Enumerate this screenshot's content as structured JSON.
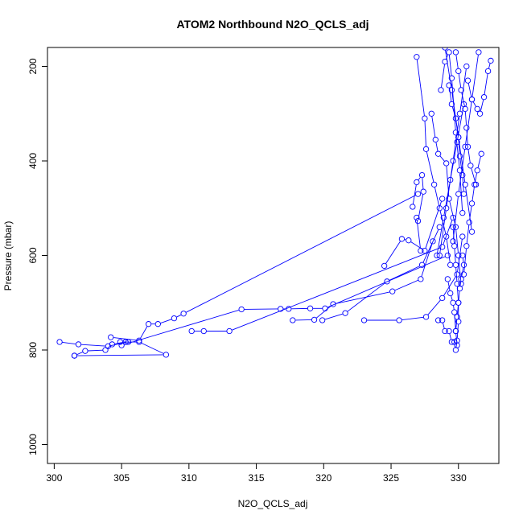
{
  "chart_data": {
    "type": "scatter",
    "title": "ATOM2 Northbound N2O_QCLS_adj",
    "xlabel": "N2O_QCLS_adj",
    "ylabel": "Pressure (mbar)",
    "xlim": [
      299.5,
      333.0
    ],
    "ylim": [
      1040,
      160
    ],
    "y_reversed": true,
    "x_ticks": [
      "300",
      "305",
      "310",
      "315",
      "320",
      "325",
      "330"
    ],
    "y_ticks": [
      "200",
      "400",
      "600",
      "800",
      "1000"
    ],
    "grid": false,
    "legend": "none",
    "marker": "open-circle",
    "connected": true,
    "color": "#0000ff",
    "series": [
      {
        "x": [
          300.4,
          301.8,
          304.0,
          305.5,
          304.9,
          306.3,
          308.3,
          301.5
        ],
        "y": [
          783,
          788,
          792,
          783,
          783,
          783,
          810,
          812
        ]
      },
      {
        "x": [
          301.5,
          302.3,
          303.8,
          304.3,
          305.3
        ],
        "y": [
          812,
          802,
          800,
          788,
          783
        ]
      },
      {
        "x": [
          304.2,
          306.3,
          307.0,
          307.7,
          308.9,
          309.6,
          327.0
        ],
        "y": [
          773,
          780,
          745,
          745,
          733,
          723,
          470
        ]
      },
      {
        "x": [
          305.0,
          313.9,
          316.8,
          317.4,
          319.0,
          320.1,
          329.2
        ],
        "y": [
          790,
          714,
          713,
          713,
          712,
          712,
          600
        ]
      },
      {
        "x": [
          310.2,
          311.1,
          313.0,
          328.8,
          329.6
        ],
        "y": [
          760,
          760,
          760,
          582,
          520
        ]
      },
      {
        "x": [
          317.7,
          319.3,
          320.7,
          325.1,
          327.2,
          328.1
        ],
        "y": [
          737,
          736,
          703,
          676,
          650,
          570
        ]
      },
      {
        "x": [
          319.9,
          321.6,
          324.7,
          327.3,
          328.6
        ],
        "y": [
          737,
          722,
          655,
          620,
          540
        ]
      },
      {
        "x": [
          323.0,
          325.6,
          327.6,
          328.8,
          329.9,
          330.3
        ],
        "y": [
          737,
          737,
          730,
          690,
          640,
          560
        ]
      },
      {
        "x": [
          324.5,
          325.8,
          326.3,
          327.5,
          328.8
        ],
        "y": [
          622,
          565,
          568,
          590,
          480
        ]
      },
      {
        "x": [
          326.6,
          326.9,
          327.3,
          327.4,
          327.0,
          326.9,
          327.2
        ],
        "y": [
          497,
          445,
          430,
          465,
          527,
          520,
          590
        ]
      },
      {
        "x": [
          326.9,
          327.5,
          327.6,
          328.2,
          328.6,
          329.1,
          329.4
        ],
        "y": [
          180,
          310,
          375,
          450,
          500,
          560,
          620
        ]
      },
      {
        "x": [
          328.0,
          328.3,
          328.5,
          329.1,
          329.3,
          329.8,
          330.0,
          330.2
        ],
        "y": [
          300,
          355,
          385,
          405,
          480,
          540,
          600,
          660
        ]
      },
      {
        "x": [
          328.7,
          329.0,
          329.3,
          329.5,
          329.8,
          330.1,
          330.3
        ],
        "y": [
          250,
          190,
          170,
          225,
          340,
          420,
          510
        ]
      },
      {
        "x": [
          329.3,
          329.5,
          329.8,
          330.0,
          330.1,
          330.3,
          330.4
        ],
        "y": [
          240,
          280,
          310,
          350,
          390,
          430,
          470
        ]
      },
      {
        "x": [
          329.8,
          330.0,
          330.2,
          330.5,
          330.6,
          330.7,
          330.9,
          331.3
        ],
        "y": [
          170,
          210,
          250,
          290,
          330,
          370,
          410,
          450
        ]
      },
      {
        "x": [
          330.7,
          331.0,
          331.4,
          331.6,
          331.9,
          332.2,
          332.4
        ],
        "y": [
          230,
          270,
          290,
          300,
          265,
          210,
          188
        ]
      },
      {
        "x": [
          331.7,
          331.4,
          331.2,
          331.0,
          330.8,
          330.6,
          330.4
        ],
        "y": [
          385,
          420,
          450,
          490,
          530,
          580,
          640
        ]
      },
      {
        "x": [
          329.6,
          329.7,
          329.8,
          329.9,
          330.0,
          330.0,
          329.9,
          329.8
        ],
        "y": [
          540,
          580,
          620,
          660,
          700,
          740,
          780,
          800
        ]
      },
      {
        "x": [
          329.2,
          329.4,
          329.6,
          329.7,
          329.8,
          329.9
        ],
        "y": [
          650,
          680,
          700,
          720,
          760,
          790
        ]
      },
      {
        "x": [
          328.5,
          328.8,
          329.0,
          329.3,
          329.5,
          329.7
        ],
        "y": [
          737,
          737,
          760,
          760,
          783,
          783
        ]
      },
      {
        "x": [
          330.3,
          330.4,
          330.2,
          330.1,
          330.0,
          329.9,
          329.8
        ],
        "y": [
          600,
          620,
          650,
          670,
          700,
          730,
          760
        ]
      },
      {
        "x": [
          329.0,
          329.5,
          330.0,
          330.5,
          331.0
        ],
        "y": [
          160,
          250,
          350,
          450,
          550
        ]
      },
      {
        "x": [
          331.5,
          331.0,
          330.5,
          330.0,
          329.6
        ],
        "y": [
          170,
          270,
          370,
          470,
          570
        ]
      },
      {
        "x": [
          328.4,
          328.9,
          329.4,
          329.9,
          330.4
        ],
        "y": [
          600,
          520,
          440,
          360,
          280
        ]
      },
      {
        "x": [
          330.6,
          330.1,
          329.6,
          329.1,
          328.6
        ],
        "y": [
          200,
          300,
          400,
          500,
          600
        ]
      }
    ]
  }
}
